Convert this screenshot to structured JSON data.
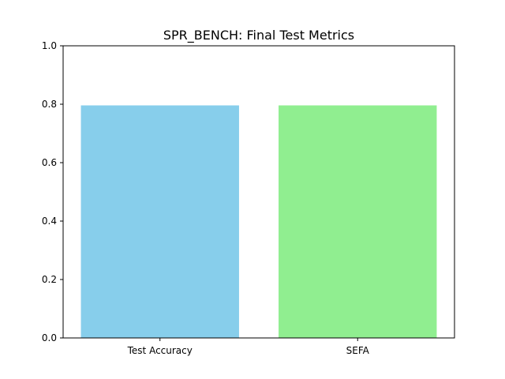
{
  "chart_data": {
    "type": "bar",
    "title": "SPR_BENCH: Final Test Metrics",
    "xlabel": "",
    "ylabel": "",
    "categories": [
      "Test Accuracy",
      "SEFA"
    ],
    "values": [
      0.796,
      0.796
    ],
    "colors": [
      "#87ceeb",
      "#90ee90"
    ],
    "ylim": [
      0,
      1.0
    ],
    "yticks": [
      "0.0",
      "0.2",
      "0.4",
      "0.6",
      "0.8",
      "1.0"
    ],
    "grid": false,
    "legend": "none"
  }
}
